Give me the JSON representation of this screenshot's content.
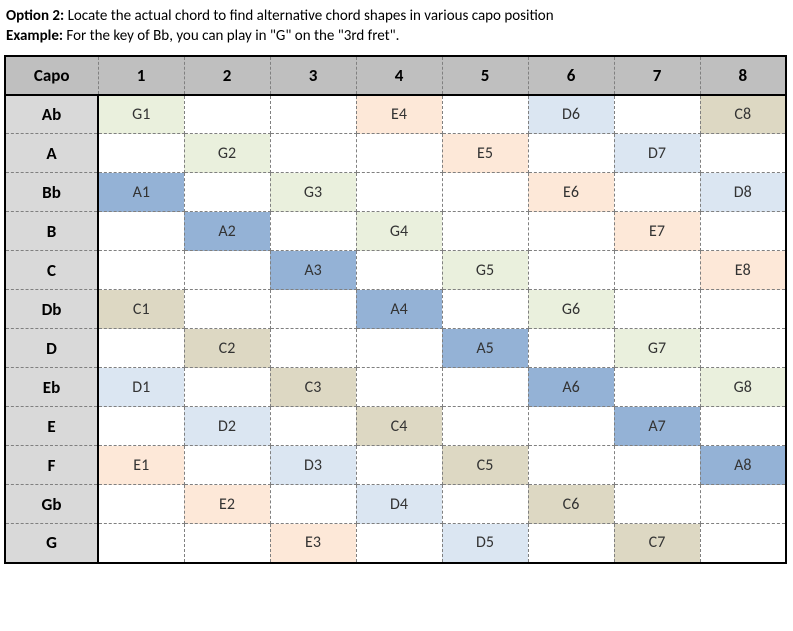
{
  "intro": {
    "option_label": "Option 2:",
    "option_text": " Locate the actual chord to find alternative chord shapes in various capo position",
    "example_label": "Example:",
    "example_text": " For the key of Bb, you can play in \"G\" on the \"3rd fret\"."
  },
  "table": {
    "corner": "Capo",
    "columns": [
      "1",
      "2",
      "3",
      "4",
      "5",
      "6",
      "7",
      "8"
    ],
    "row_keys": [
      "Ab",
      "A",
      "Bb",
      "B",
      "C",
      "Db",
      "D",
      "Eb",
      "E",
      "F",
      "Gb",
      "G"
    ],
    "cells": {
      "Ab": {
        "1": {
          "v": "G1",
          "c": "g"
        },
        "4": {
          "v": "E4",
          "c": "e"
        },
        "6": {
          "v": "D6",
          "c": "d"
        },
        "8": {
          "v": "C8",
          "c": "c"
        }
      },
      "A": {
        "2": {
          "v": "G2",
          "c": "g"
        },
        "5": {
          "v": "E5",
          "c": "e"
        },
        "7": {
          "v": "D7",
          "c": "d"
        }
      },
      "Bb": {
        "1": {
          "v": "A1",
          "c": "a"
        },
        "3": {
          "v": "G3",
          "c": "g"
        },
        "6": {
          "v": "E6",
          "c": "e"
        },
        "8": {
          "v": "D8",
          "c": "d"
        }
      },
      "B": {
        "2": {
          "v": "A2",
          "c": "a"
        },
        "4": {
          "v": "G4",
          "c": "g"
        },
        "7": {
          "v": "E7",
          "c": "e"
        }
      },
      "C": {
        "3": {
          "v": "A3",
          "c": "a"
        },
        "5": {
          "v": "G5",
          "c": "g"
        },
        "8": {
          "v": "E8",
          "c": "e"
        }
      },
      "Db": {
        "1": {
          "v": "C1",
          "c": "c"
        },
        "4": {
          "v": "A4",
          "c": "a"
        },
        "6": {
          "v": "G6",
          "c": "g"
        }
      },
      "D": {
        "2": {
          "v": "C2",
          "c": "c"
        },
        "5": {
          "v": "A5",
          "c": "a"
        },
        "7": {
          "v": "G7",
          "c": "g"
        }
      },
      "Eb": {
        "1": {
          "v": "D1",
          "c": "d"
        },
        "3": {
          "v": "C3",
          "c": "c"
        },
        "6": {
          "v": "A6",
          "c": "a"
        },
        "8": {
          "v": "G8",
          "c": "g"
        }
      },
      "E": {
        "2": {
          "v": "D2",
          "c": "d"
        },
        "4": {
          "v": "C4",
          "c": "c"
        },
        "7": {
          "v": "A7",
          "c": "a"
        }
      },
      "F": {
        "1": {
          "v": "E1",
          "c": "e"
        },
        "3": {
          "v": "D3",
          "c": "d"
        },
        "5": {
          "v": "C5",
          "c": "c"
        },
        "8": {
          "v": "A8",
          "c": "a"
        }
      },
      "Gb": {
        "2": {
          "v": "E2",
          "c": "e"
        },
        "4": {
          "v": "D4",
          "c": "d"
        },
        "6": {
          "v": "C6",
          "c": "c"
        }
      },
      "G": {
        "3": {
          "v": "E3",
          "c": "e"
        },
        "5": {
          "v": "D5",
          "c": "d"
        },
        "7": {
          "v": "C7",
          "c": "c"
        }
      }
    },
    "fill_colors": {
      "g": "#eaf0dd",
      "e": "#fde8d8",
      "d": "#dbe6f2",
      "c": "#ddd8c3",
      "a": "#94b2d6"
    },
    "header_bg": "#bfbfbf",
    "rowkey_bg": "#d9d9d9",
    "background": "#ffffff",
    "border_dash_color": "#808080",
    "border_solid_color": "#000000",
    "font_family": "Calibri",
    "header_fontsize_pt": 13,
    "cell_fontsize_pt": 12
  }
}
